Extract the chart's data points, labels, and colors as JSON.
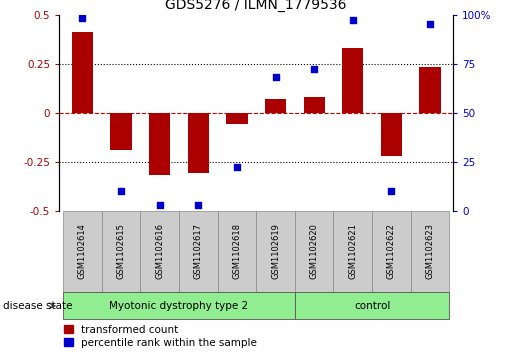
{
  "title": "GDS5276 / ILMN_1779536",
  "samples": [
    "GSM1102614",
    "GSM1102615",
    "GSM1102616",
    "GSM1102617",
    "GSM1102618",
    "GSM1102619",
    "GSM1102620",
    "GSM1102621",
    "GSM1102622",
    "GSM1102623"
  ],
  "bar_values": [
    0.41,
    -0.19,
    -0.32,
    -0.31,
    -0.06,
    0.07,
    0.08,
    0.33,
    -0.22,
    0.23
  ],
  "percentile_values": [
    98,
    10,
    3,
    3,
    22,
    68,
    72,
    97,
    10,
    95
  ],
  "ylim_left": [
    -0.5,
    0.5
  ],
  "ylim_right": [
    0,
    100
  ],
  "yticks_left": [
    -0.5,
    -0.25,
    0.0,
    0.25,
    0.5
  ],
  "yticks_right": [
    0,
    25,
    50,
    75,
    100
  ],
  "ytick_labels_left": [
    "-0.5",
    "-0.25",
    "0",
    "0.25",
    "0.5"
  ],
  "ytick_labels_right": [
    "0",
    "25",
    "50",
    "75",
    "100%"
  ],
  "bar_color": "#aa0000",
  "scatter_color": "#0000cc",
  "hline_zero_color": "#cc0000",
  "dotted_line_color": "#000000",
  "dotted_lines": [
    0.25,
    -0.25
  ],
  "group1_label": "Myotonic dystrophy type 2",
  "group2_label": "control",
  "group1_indices": [
    0,
    1,
    2,
    3,
    4,
    5
  ],
  "group2_indices": [
    6,
    7,
    8,
    9
  ],
  "disease_state_label": "disease state",
  "legend_bar_label": "transformed count",
  "legend_scatter_label": "percentile rank within the sample",
  "background_color": "#ffffff",
  "sample_box_color": "#cccccc",
  "group_box_color": "#90ee90",
  "bar_width": 0.55
}
